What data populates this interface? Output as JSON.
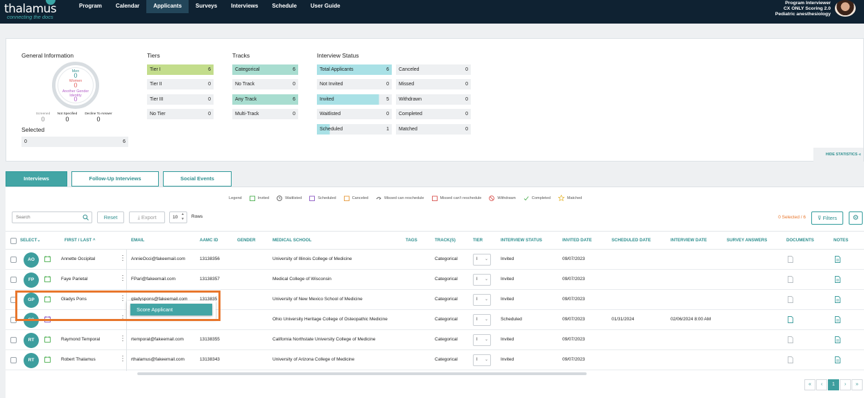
{
  "app": {
    "logo": "thalamus",
    "tagline": "connecting the docs"
  },
  "nav": [
    "Program",
    "Calendar",
    "Applicants",
    "Surveys",
    "Interviews",
    "Schedule",
    "User Guide"
  ],
  "nav_active": "Applicants",
  "user": {
    "line1": "Program Interviewer",
    "line2": "CX ONLY Scoring 2.0",
    "line3": "Pediatric anesthesiology"
  },
  "stats": {
    "general": {
      "title": "General Information",
      "men_label": "Men",
      "men": "0",
      "women_label": "Women",
      "women": "0",
      "another_label": "Another Gender Identity",
      "another": "0",
      "screened_label": "Screened",
      "screened": "0",
      "not_specified_label": "Not Specified",
      "not_specified": "0",
      "decline_label": "Decline To Answer",
      "decline": "0",
      "selected_title": "Selected",
      "selected_left": "0",
      "selected_right": "6"
    },
    "tiers": {
      "title": "Tiers",
      "items": [
        {
          "label": "Tier I",
          "value": "6"
        },
        {
          "label": "Tier II",
          "value": "0"
        },
        {
          "label": "Tier III",
          "value": "0"
        },
        {
          "label": "No Tier",
          "value": "0"
        }
      ]
    },
    "tracks": {
      "title": "Tracks",
      "items": [
        {
          "label": "Categorical",
          "value": "6"
        },
        {
          "label": "No Track",
          "value": "0"
        },
        {
          "label": "Any Track",
          "value": "6"
        },
        {
          "label": "Multi-Track",
          "value": "0"
        }
      ]
    },
    "status": {
      "title": "Interview Status",
      "left": [
        {
          "label": "Total Applicants",
          "value": "6"
        },
        {
          "label": "Not Invited",
          "value": "0"
        },
        {
          "label": "Invited",
          "value": "5"
        },
        {
          "label": "Waitlisted",
          "value": "0"
        },
        {
          "label": "Scheduled",
          "value": "1"
        }
      ],
      "right": [
        {
          "label": "Canceled",
          "value": "0"
        },
        {
          "label": "Missed",
          "value": "0"
        },
        {
          "label": "Withdrawn",
          "value": "0"
        },
        {
          "label": "Completed",
          "value": "0"
        },
        {
          "label": "Matched",
          "value": "0"
        }
      ]
    },
    "hide_label": "HIDE STATISTICS"
  },
  "tabs": [
    "Interviews",
    "Follow-Up Interviews",
    "Social Events"
  ],
  "legend": {
    "title": "Legend",
    "items": [
      "Invited",
      "Waitlisted",
      "Scheduled",
      "Canceled",
      "Missed can reschedule",
      "Missed can't reschedule",
      "Withdrawn",
      "Completed",
      "Matched"
    ]
  },
  "toolbar": {
    "search_placeholder": "Search",
    "reset": "Reset",
    "export": "Export",
    "rows_value": "10",
    "rows_label": "Rows",
    "selected_count": "0 Selected / 6",
    "filters": "Filters"
  },
  "columns": [
    "SELECT",
    "FIRST / LAST",
    "EMAIL",
    "AAMC ID",
    "GENDER",
    "MEDICAL SCHOOL",
    "TAGS",
    "TRACK(S)",
    "TIER",
    "INTERVIEW STATUS",
    "INVITED DATE",
    "SCHEDULED DATE",
    "INTERVIEW DATE",
    "SURVEY ANSWERS",
    "DOCUMENTS",
    "NOTES"
  ],
  "rows": [
    {
      "initials": "AO",
      "name": "Annette Occipital",
      "email": "AnnieOcci@fakeemail.com",
      "aamc": "13138356",
      "school": "University of Illinois College of Medicine",
      "track": "Categorical",
      "tier": "I",
      "status": "Invited",
      "invited": "09/07/2023",
      "scheduled": "",
      "interview": ""
    },
    {
      "initials": "FP",
      "name": "Faye Parietal",
      "email": "FPari@fakeemail.com",
      "aamc": "13138357",
      "school": "Medical College of Wisconsin",
      "track": "Categorical",
      "tier": "I",
      "status": "Invited",
      "invited": "09/07/2023",
      "scheduled": "",
      "interview": ""
    },
    {
      "initials": "GP",
      "name": "Gladys Pons",
      "email": "gladyspons@fakeemail.com",
      "aamc": "1313835",
      "school": "University of New Mexico School of Medicine",
      "track": "Categorical",
      "tier": "I",
      "status": "Invited",
      "invited": "09/07/2023",
      "scheduled": "",
      "interview": ""
    },
    {
      "initials": "SS",
      "name": "",
      "email": "",
      "aamc": "",
      "school": "Ohio University Heritage College of Osteopathic Medicine",
      "track": "Categorical",
      "tier": "I",
      "status": "Scheduled",
      "invited": "09/07/2023",
      "scheduled": "01/31/2024",
      "interview": "02/06/2024 8:00 AM"
    },
    {
      "initials": "RT",
      "name": "Raymond Temporal",
      "email": "rtemporal@fakeemail.com",
      "aamc": "13138355",
      "school": "California Northstate University College of Medicine",
      "track": "Categorical",
      "tier": "I",
      "status": "Invited",
      "invited": "09/07/2023",
      "scheduled": "",
      "interview": ""
    },
    {
      "initials": "RT",
      "name": "Robert Thalamus",
      "email": "rthalamus@fakeemail.com",
      "aamc": "13138343",
      "school": "University of Arizona College of Medicine",
      "track": "Categorical",
      "tier": "I",
      "status": "Invited",
      "invited": "09/07/2023",
      "scheduled": "",
      "interview": ""
    }
  ],
  "popup": {
    "label": "Score Applicant"
  },
  "pager": {
    "first": "«",
    "prev": "‹",
    "current": "1",
    "next": "›",
    "last": "»"
  },
  "colors": {
    "accent": "#43a5a5",
    "nav_bg": "#0f2232",
    "highlight": "#e8762c"
  }
}
